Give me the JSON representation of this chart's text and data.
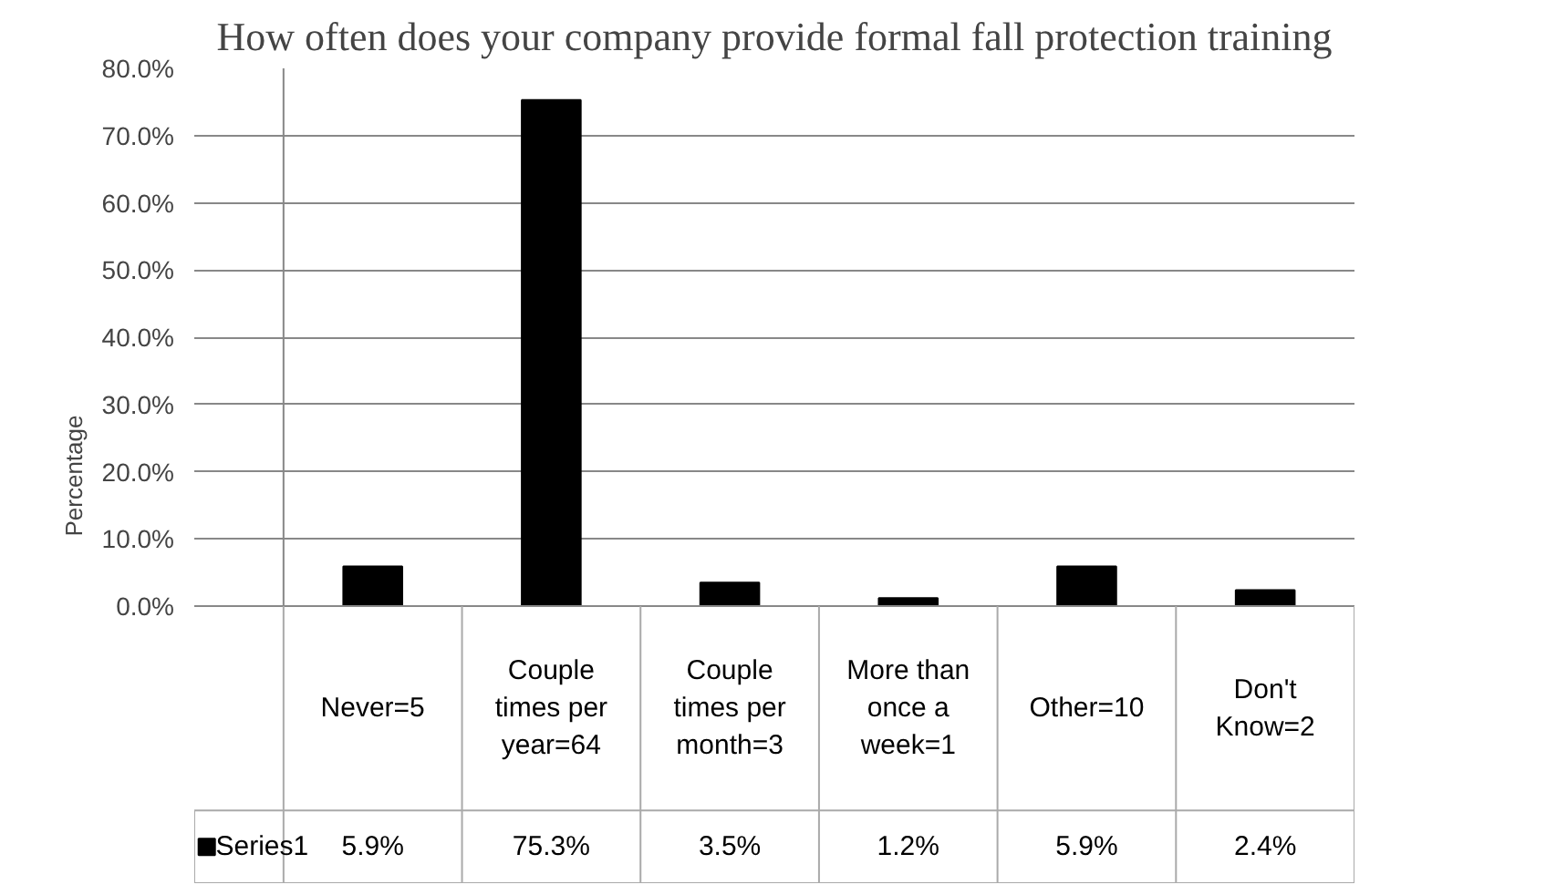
{
  "chart_data": {
    "type": "bar",
    "title": "How often does your company provide formal fall protection training",
    "ylabel": "Percentage",
    "categories": [
      "Never=5",
      "Couple times per year=64",
      "Couple times per month=3",
      "More than once a week=1",
      "Other=10",
      "Don't Know=2"
    ],
    "series": [
      {
        "name": "Series1",
        "color": "#000000",
        "values": [
          5.9,
          75.3,
          3.5,
          1.2,
          5.9,
          2.4
        ],
        "value_labels": [
          "5.9%",
          "75.3%",
          "3.5%",
          "1.2%",
          "5.9%",
          "2.4%"
        ]
      }
    ],
    "ylim": [
      0,
      80
    ],
    "yticks": [
      {
        "value": 0,
        "label": "0.0%"
      },
      {
        "value": 10,
        "label": "10.0%"
      },
      {
        "value": 20,
        "label": "20.0%"
      },
      {
        "value": 30,
        "label": "30.0%"
      },
      {
        "value": 40,
        "label": "40.0%"
      },
      {
        "value": 50,
        "label": "50.0%"
      },
      {
        "value": 60,
        "label": "60.0%"
      },
      {
        "value": 70,
        "label": "70.0%"
      },
      {
        "value": 80,
        "label": "80.0%"
      }
    ],
    "grid": "y"
  }
}
